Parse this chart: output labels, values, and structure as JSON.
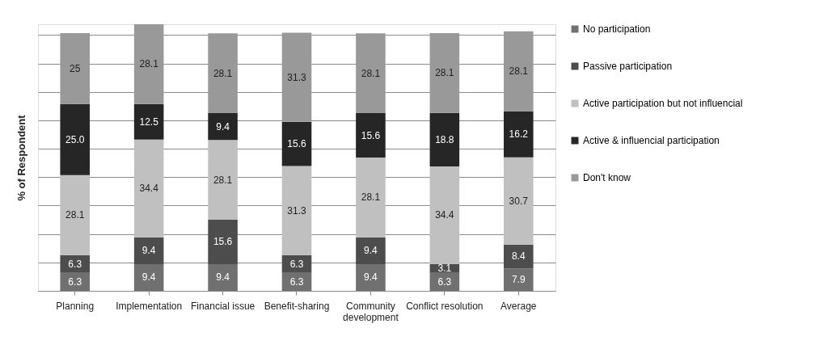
{
  "chart_data": {
    "type": "bar",
    "stacked": true,
    "ylabel": "% of Respondent",
    "categories": [
      "Planning",
      "Implementation",
      "Financial issue",
      "Benefit-sharing",
      "Community development",
      "Conflict resolution",
      "Average"
    ],
    "series": [
      {
        "name": "No participation",
        "color": "#707070",
        "values": [
          6.3,
          9.4,
          9.4,
          6.3,
          9.4,
          6.3,
          7.9
        ],
        "value_labels": [
          "6.3",
          "9.4",
          "9.4",
          "6.3",
          "9.4",
          "6.3",
          "7.9"
        ]
      },
      {
        "name": "Passive participation",
        "color": "#4d4d4d",
        "values": [
          6.3,
          9.4,
          15.6,
          6.3,
          9.4,
          3.1,
          8.4
        ],
        "value_labels": [
          "6.3",
          "9.4",
          "15.6",
          "6.3",
          "9.4",
          "3.1",
          "8.4"
        ]
      },
      {
        "name": "Active participation but not influencial",
        "color": "#c0c0c0",
        "values": [
          28.1,
          34.4,
          28.1,
          31.3,
          28.1,
          34.4,
          30.7
        ],
        "value_labels": [
          "28.1",
          "34.4",
          "28.1",
          "31.3",
          "28.1",
          "34.4",
          "30.7"
        ]
      },
      {
        "name": "Active & influencial participation",
        "color": "#262626",
        "values": [
          25.0,
          12.5,
          9.4,
          15.6,
          15.6,
          18.8,
          16.2
        ],
        "value_labels": [
          "25.0",
          "12.5",
          "9.4",
          "15.6",
          "15.6",
          "18.8",
          "16.2"
        ]
      },
      {
        "name": "Don't  know",
        "color": "#999999",
        "values": [
          25,
          28.1,
          28.1,
          31.3,
          28.1,
          28.1,
          28.1
        ],
        "value_labels": [
          "25",
          "28.1",
          "28.1",
          "31.3",
          "28.1",
          "28.1",
          "28.1"
        ]
      }
    ],
    "grid": "y",
    "legend": "right",
    "tick_labels": "x"
  }
}
